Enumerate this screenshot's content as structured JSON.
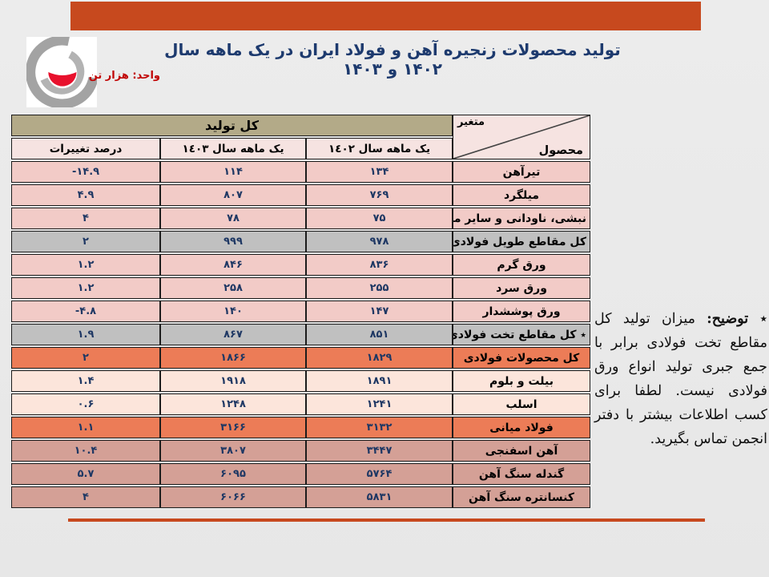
{
  "page": {
    "background": "#eaeaea",
    "accent_color": "#c7491e"
  },
  "header": {
    "title": "تولید محصولات زنجیره آهن و فولاد ایران در یک ماهه سال ۱۴۰۲ و ۱۴۰۳",
    "title_color": "#1d3a6e",
    "unit_label": "واحد: هزار تن",
    "unit_color": "#c00000",
    "logo_icon": "steel-association-logo"
  },
  "table": {
    "group_header": "کل تولید",
    "corner": {
      "top": "متغیر",
      "bottom": "محصول"
    },
    "columns": [
      "یک ماهه سال ١٤٠٢",
      "یک ماهه سال ١٤٠٣",
      "درصد تغییرات"
    ],
    "palette": {
      "pink": {
        "bg": "#f2cbc7"
      },
      "gray": {
        "bg": "#c0c0c0"
      },
      "orange": {
        "bg": "#ec7c57"
      },
      "peach": {
        "bg": "#fce5db"
      },
      "dusty": {
        "bg": "#d4a096"
      }
    },
    "rows": [
      {
        "product": "تیرآهن",
        "y1402": "۱۳۴",
        "y1403": "۱۱۴",
        "pct": "-۱۴.۹",
        "type": "pink"
      },
      {
        "product": "میلگرد",
        "y1402": "۷۶۹",
        "y1403": "۸۰۷",
        "pct": "۴.۹",
        "type": "pink"
      },
      {
        "product": "نبشی، ناودانی و سایر مقاطع",
        "y1402": "۷۵",
        "y1403": "۷۸",
        "pct": "۴",
        "type": "pink"
      },
      {
        "product": "کل مقاطع طویل فولادی",
        "y1402": "۹۷۸",
        "y1403": "۹۹۹",
        "pct": "۲",
        "type": "gray"
      },
      {
        "product": "ورق گرم",
        "y1402": "۸۳۶",
        "y1403": "۸۴۶",
        "pct": "۱.۲",
        "type": "pink"
      },
      {
        "product": "ورق سرد",
        "y1402": "۲۵۵",
        "y1403": "۲۵۸",
        "pct": "۱.۲",
        "type": "pink"
      },
      {
        "product": "ورق پوششدار",
        "y1402": "۱۴۷",
        "y1403": "۱۴۰",
        "pct": "-۴.۸",
        "type": "pink"
      },
      {
        "product": "٭ کل مقاطع تخت فولادی",
        "y1402": "۸۵۱",
        "y1403": "۸۶۷",
        "pct": "۱.۹",
        "type": "gray"
      },
      {
        "product": "کل محصولات فولادی",
        "y1402": "۱۸۲۹",
        "y1403": "۱۸۶۶",
        "pct": "۲",
        "type": "orange"
      },
      {
        "product": "بیلت و بلوم",
        "y1402": "۱۸۹۱",
        "y1403": "۱۹۱۸",
        "pct": "۱.۴",
        "type": "peach"
      },
      {
        "product": "اسلب",
        "y1402": "۱۲۴۱",
        "y1403": "۱۲۴۸",
        "pct": "۰.۶",
        "type": "peach"
      },
      {
        "product": "فولاد میانی",
        "y1402": "۳۱۳۲",
        "y1403": "۳۱۶۶",
        "pct": "۱.۱",
        "type": "orange"
      },
      {
        "product": "آهن اسفنجی",
        "y1402": "۳۴۴۷",
        "y1403": "۳۸۰۷",
        "pct": "۱۰.۴",
        "type": "dusty"
      },
      {
        "product": "گندله سنگ آهن",
        "y1402": "۵۷۶۴",
        "y1403": "۶۰۹۵",
        "pct": "۵.۷",
        "type": "dusty"
      },
      {
        "product": "کنسانتره سنگ آهن",
        "y1402": "۵۸۳۱",
        "y1403": "۶۰۶۶",
        "pct": "۴",
        "type": "dusty"
      }
    ]
  },
  "note": {
    "marker": "٭",
    "label": "توضیح:",
    "body": " میزان تولید کل مقاطع تخت فولادی برابر با جمع جبری تولید انواع ورق فولادی نیست. لطفا برای کسب اطلاعات بیشتر با دفتر انجمن تماس بگیرید."
  },
  "chart_data": {
    "type": "table",
    "title": "تولید محصولات زنجیره آهن و فولاد ایران در یک ماهه سال ۱۴۰۲ و ۱۴۰۳",
    "unit": "هزار تن",
    "columns": [
      "محصول",
      "یک ماهه سال ۱۴۰۲",
      "یک ماهه سال ۱۴۰۳",
      "درصد تغییرات"
    ],
    "rows": [
      [
        "تیرآهن",
        134,
        114,
        -14.9
      ],
      [
        "میلگرد",
        769,
        807,
        4.9
      ],
      [
        "نبشی، ناودانی و سایر مقاطع",
        75,
        78,
        4
      ],
      [
        "کل مقاطع طویل فولادی",
        978,
        999,
        2
      ],
      [
        "ورق گرم",
        836,
        846,
        1.2
      ],
      [
        "ورق سرد",
        255,
        258,
        1.2
      ],
      [
        "ورق پوششدار",
        147,
        140,
        -4.8
      ],
      [
        "کل مقاطع تخت فولادی",
        851,
        867,
        1.9
      ],
      [
        "کل محصولات فولادی",
        1829,
        1866,
        2
      ],
      [
        "بیلت و بلوم",
        1891,
        1918,
        1.4
      ],
      [
        "اسلب",
        1241,
        1248,
        0.6
      ],
      [
        "فولاد میانی",
        3132,
        3166,
        1.1
      ],
      [
        "آهن اسفنجی",
        3447,
        3807,
        10.4
      ],
      [
        "گندله سنگ آهن",
        5764,
        6095,
        5.7
      ],
      [
        "کنسانتره سنگ آهن",
        5831,
        6066,
        4
      ]
    ]
  }
}
